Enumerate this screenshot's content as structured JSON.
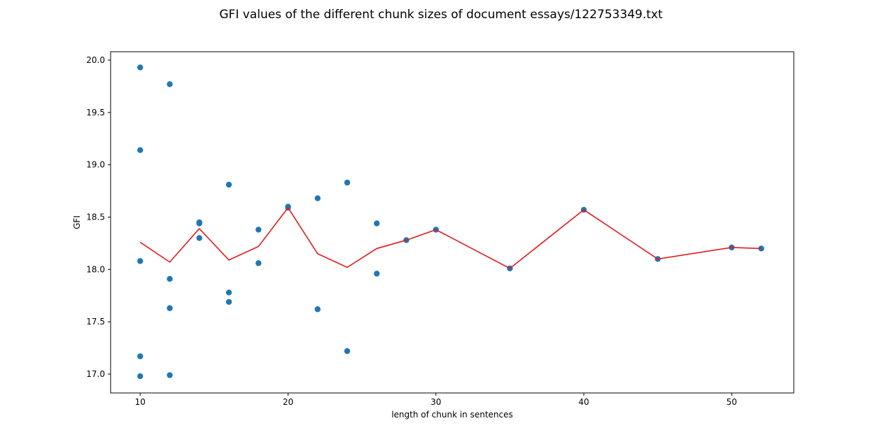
{
  "chart_data": {
    "type": "scatter",
    "title": "GFI values of the different chunk sizes of document essays/122753349.txt",
    "xlabel": "length of chunk in sentences",
    "ylabel": "GFI",
    "xlim": [
      8,
      54.2
    ],
    "ylim": [
      16.82,
      20.08
    ],
    "xticks": [
      10,
      20,
      30,
      40,
      50
    ],
    "yticks": [
      17.0,
      17.5,
      18.0,
      18.5,
      19.0,
      19.5,
      20.0
    ],
    "grid": false,
    "colors": {
      "scatter": "#1f77b4",
      "line": "#e31a1c"
    },
    "series": [
      {
        "type": "scatter",
        "points": [
          [
            10,
            19.93
          ],
          [
            10,
            19.14
          ],
          [
            10,
            18.08
          ],
          [
            10,
            17.17
          ],
          [
            10,
            16.98
          ],
          [
            12,
            19.77
          ],
          [
            12,
            17.91
          ],
          [
            12,
            17.63
          ],
          [
            12,
            16.99
          ],
          [
            14,
            18.45
          ],
          [
            14,
            18.44
          ],
          [
            14,
            18.3
          ],
          [
            16,
            18.81
          ],
          [
            16,
            17.78
          ],
          [
            16,
            17.69
          ],
          [
            18,
            18.38
          ],
          [
            18,
            18.06
          ],
          [
            20,
            18.6
          ],
          [
            20,
            18.59
          ],
          [
            22,
            18.68
          ],
          [
            22,
            17.62
          ],
          [
            24,
            18.83
          ],
          [
            24,
            17.22
          ],
          [
            26,
            18.44
          ],
          [
            26,
            17.96
          ],
          [
            28,
            18.28
          ],
          [
            30,
            18.38
          ],
          [
            35,
            18.01
          ],
          [
            40,
            18.57
          ],
          [
            45,
            18.1
          ],
          [
            50,
            18.21
          ],
          [
            52,
            18.2
          ]
        ]
      },
      {
        "type": "line",
        "points": [
          [
            10,
            18.26
          ],
          [
            12,
            18.07
          ],
          [
            14,
            18.39
          ],
          [
            16,
            18.09
          ],
          [
            18,
            18.22
          ],
          [
            20,
            18.59
          ],
          [
            22,
            18.15
          ],
          [
            24,
            18.02
          ],
          [
            26,
            18.2
          ],
          [
            28,
            18.28
          ],
          [
            30,
            18.38
          ],
          [
            35,
            18.01
          ],
          [
            40,
            18.57
          ],
          [
            45,
            18.1
          ],
          [
            50,
            18.21
          ],
          [
            52,
            18.2
          ]
        ]
      }
    ]
  }
}
